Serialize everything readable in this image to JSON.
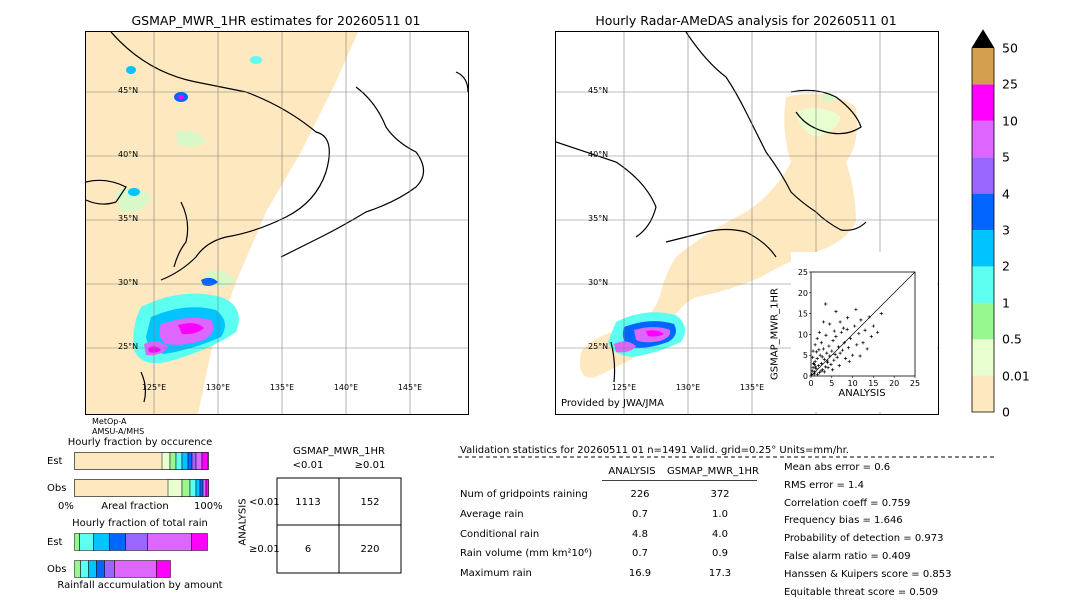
{
  "left_map": {
    "title": "GSMAP_MWR_1HR estimates for 20260511 01",
    "lat_labels": [
      "45°N",
      "40°N",
      "35°N",
      "30°N",
      "25°N"
    ],
    "lon_labels": [
      "125°E",
      "130°E",
      "135°E",
      "140°E",
      "145°E"
    ],
    "satellite_note": [
      "MetOp-A",
      "AMSU-A/MHS"
    ]
  },
  "right_map": {
    "title": "Hourly Radar-AMeDAS analysis for 20260511 01",
    "lat_labels": [
      "45°N",
      "40°N",
      "35°N",
      "30°N",
      "25°N"
    ],
    "lon_labels": [
      "125°E",
      "130°E",
      "135°E"
    ],
    "provider": "Provided by JWA/JMA"
  },
  "colorbar": {
    "labels": [
      "0",
      "0.01",
      "0.5",
      "1",
      "2",
      "3",
      "4",
      "5",
      "10",
      "25",
      "50"
    ],
    "colors": [
      "#fde8c0",
      "#e8ffd0",
      "#98f890",
      "#5cfff0",
      "#00c4ff",
      "#0066ff",
      "#9966ff",
      "#dd66ff",
      "#ff00ff",
      "#d4a050"
    ]
  },
  "chart_data": [
    {
      "type": "scatter",
      "xlabel": "ANALYSIS",
      "ylabel": "GSMAP_MWR_1HR",
      "xlim": [
        0,
        25
      ],
      "ylim": [
        0,
        25
      ],
      "x_ticks": [
        "0",
        "5",
        "10",
        "15",
        "20",
        "25"
      ],
      "y_ticks": [
        "0",
        "5",
        "10",
        "15",
        "20",
        "25"
      ],
      "diagonal": true,
      "points": [
        [
          0.3,
          1.2
        ],
        [
          0.5,
          2.0
        ],
        [
          0.8,
          0.5
        ],
        [
          1.0,
          3.5
        ],
        [
          1.2,
          1.8
        ],
        [
          1.5,
          4.2
        ],
        [
          1.8,
          2.5
        ],
        [
          2.0,
          0.8
        ],
        [
          2.2,
          5.0
        ],
        [
          2.5,
          3.0
        ],
        [
          2.8,
          1.5
        ],
        [
          3.0,
          6.5
        ],
        [
          3.2,
          4.0
        ],
        [
          3.5,
          2.2
        ],
        [
          3.8,
          5.5
        ],
        [
          4.0,
          3.2
        ],
        [
          4.3,
          7.2
        ],
        [
          4.5,
          4.8
        ],
        [
          4.8,
          2.8
        ],
        [
          5.0,
          6.0
        ],
        [
          5.3,
          8.5
        ],
        [
          5.5,
          3.8
        ],
        [
          5.8,
          5.2
        ],
        [
          6.0,
          9.5
        ],
        [
          6.3,
          4.5
        ],
        [
          6.6,
          7.0
        ],
        [
          7.0,
          5.5
        ],
        [
          7.3,
          10.5
        ],
        [
          7.6,
          6.2
        ],
        [
          8.0,
          8.0
        ],
        [
          8.3,
          4.2
        ],
        [
          8.7,
          11.2
        ],
        [
          9.0,
          6.8
        ],
        [
          9.5,
          9.0
        ],
        [
          10.0,
          5.0
        ],
        [
          10.5,
          12.0
        ],
        [
          11.0,
          7.5
        ],
        [
          11.5,
          10.2
        ],
        [
          12.0,
          13.5
        ],
        [
          12.5,
          8.0
        ],
        [
          13.0,
          11.0
        ],
        [
          13.5,
          6.5
        ],
        [
          14.0,
          14.2
        ],
        [
          14.5,
          9.5
        ],
        [
          15.0,
          12.0
        ],
        [
          16.0,
          10.5
        ],
        [
          16.9,
          15.0
        ],
        [
          2.0,
          10.5
        ],
        [
          3.0,
          13.0
        ],
        [
          3.5,
          17.3
        ],
        [
          1.5,
          9.0
        ],
        [
          4.5,
          12.5
        ],
        [
          6.0,
          15.5
        ],
        [
          7.0,
          13.0
        ],
        [
          0.5,
          6.0
        ],
        [
          1.0,
          7.5
        ],
        [
          2.5,
          8.0
        ],
        [
          3.2,
          1.0
        ],
        [
          0.2,
          0.3
        ],
        [
          0.8,
          2.8
        ],
        [
          1.6,
          0.4
        ],
        [
          2.4,
          1.2
        ],
        [
          0.4,
          4.5
        ],
        [
          1.3,
          5.8
        ],
        [
          5.2,
          1.5
        ],
        [
          6.8,
          2.5
        ],
        [
          9.2,
          3.5
        ],
        [
          11.8,
          4.8
        ],
        [
          0.6,
          3.0
        ],
        [
          1.9,
          6.3
        ],
        [
          3.6,
          9.8
        ],
        [
          4.1,
          2.0
        ],
        [
          5.6,
          10.8
        ],
        [
          7.8,
          11.5
        ],
        [
          8.8,
          14.0
        ],
        [
          10.8,
          16.0
        ],
        [
          2.7,
          4.6
        ],
        [
          1.1,
          2.2
        ],
        [
          0.9,
          1.0
        ],
        [
          3.9,
          3.6
        ]
      ]
    },
    {
      "type": "bar",
      "title": "Hourly fraction by occurence",
      "xlabel": "Areal fraction",
      "x_tick_labels": [
        "0%",
        "100%"
      ],
      "categories": [
        "Est",
        "Obs"
      ]
    },
    {
      "type": "bar",
      "title": "Hourly fraction of total rain",
      "xlabel": "Rainfall accumulation by amount",
      "categories": [
        "Est",
        "Obs"
      ]
    }
  ],
  "contingency": {
    "title": "GSMAP_MWR_1HR",
    "col_headers": [
      "<0.01",
      "≥0.01"
    ],
    "row_label": "ANALYSIS",
    "row_headers": [
      "<0.01",
      "≥0.01"
    ],
    "cells": [
      [
        "1113",
        "152"
      ],
      [
        "6",
        "220"
      ]
    ]
  },
  "validation": {
    "header": "Validation statistics for 20260511 01  n=1491 Valid. grid=0.25° Units=mm/hr.",
    "col_analysis": "ANALYSIS",
    "col_gsmap": "GSMAP_MWR_1HR",
    "rows": [
      {
        "label": "Num of gridpoints raining",
        "analysis": "226",
        "gsmap": "372"
      },
      {
        "label": "Average rain",
        "analysis": "0.7",
        "gsmap": "1.0"
      },
      {
        "label": "Conditional rain",
        "analysis": "4.8",
        "gsmap": "4.0"
      },
      {
        "label": "Rain volume (mm km²10⁶)",
        "analysis": "0.7",
        "gsmap": "0.9"
      },
      {
        "label": "Maximum rain",
        "analysis": "16.9",
        "gsmap": "17.3"
      }
    ],
    "scores": [
      "Mean abs error =    0.6",
      "RMS error =    1.4",
      "Correlation coeff =  0.759",
      "Frequency bias =  1.646",
      "Probability of detection =  0.973",
      "False alarm ratio =  0.409",
      "Hanssen & Kuipers score =  0.853",
      "Equitable threat score =  0.509"
    ]
  }
}
